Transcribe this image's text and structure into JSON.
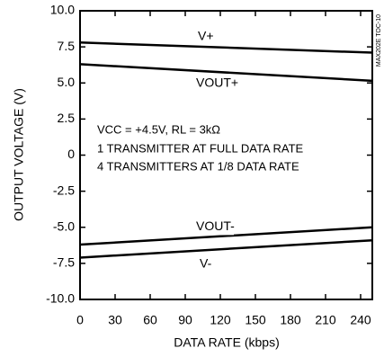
{
  "chart_data": {
    "type": "line",
    "x_label": "DATA RATE (kbps)",
    "y_label": "OUTPUT VOLTAGE (V)",
    "side_note": "MAX202E TOC-10",
    "conditions": [
      "VCC = +4.5V, RL = 3kΩ",
      "1 TRANSMITTER AT FULL DATA RATE",
      "4 TRANSMITTERS AT 1/8 DATA RATE"
    ],
    "x": [
      0,
      250
    ],
    "series": [
      {
        "name": "V+",
        "color": "#000000",
        "values": [
          7.8,
          7.1
        ]
      },
      {
        "name": "VOUT+",
        "color": "#000000",
        "values": [
          6.3,
          5.15
        ]
      },
      {
        "name": "VOUT-",
        "color": "#000000",
        "values": [
          -6.2,
          -5.0
        ]
      },
      {
        "name": "V-",
        "color": "#000000",
        "values": [
          -7.1,
          -5.9
        ]
      }
    ],
    "xlim": [
      0,
      250
    ],
    "xticks": [
      0,
      30,
      60,
      90,
      120,
      150,
      180,
      210,
      240
    ],
    "ylim": [
      -10,
      10
    ],
    "yticks": [
      {
        "value": -10,
        "label": "-10.0"
      },
      -7.5,
      {
        "value": -5,
        "label": "-5.0"
      },
      -2.5,
      0,
      2.5,
      {
        "value": 5,
        "label": "5.0"
      },
      7.5,
      {
        "value": 10,
        "label": "10.0"
      }
    ],
    "grid": false
  }
}
